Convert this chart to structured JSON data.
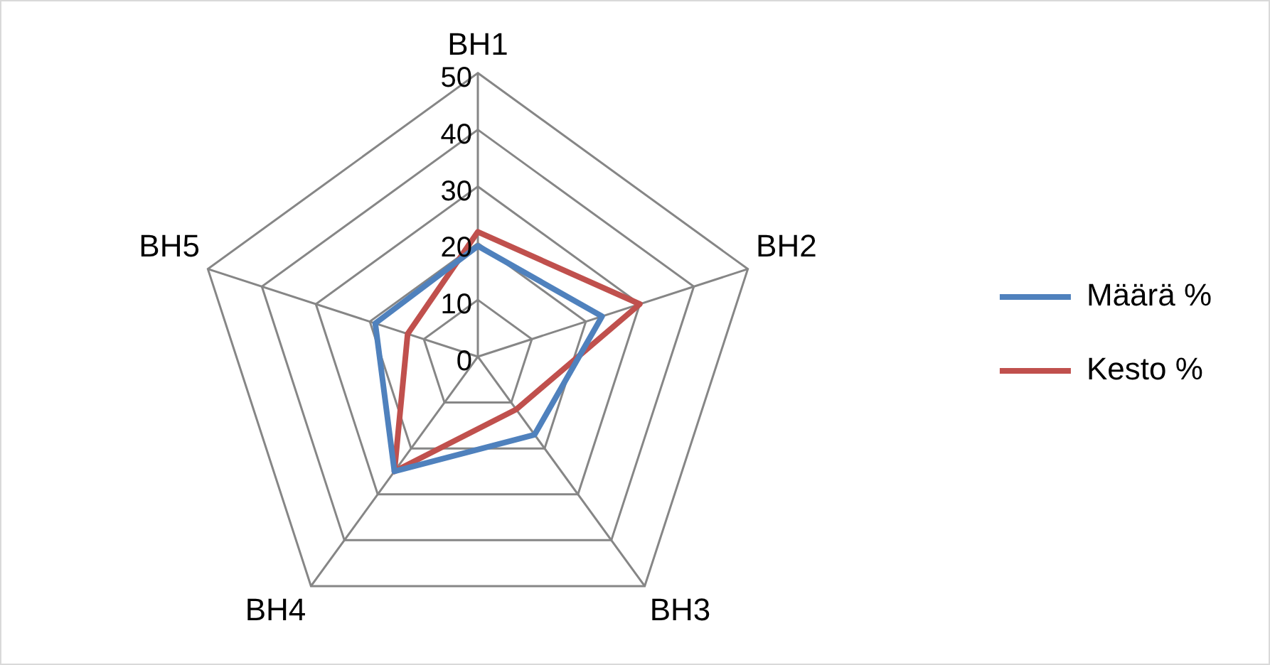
{
  "chart_data": {
    "type": "radar",
    "categories": [
      "BH1",
      "BH2",
      "BH3",
      "BH4",
      "BH5"
    ],
    "series": [
      {
        "name": "Määrä %",
        "color": "#4f81bd",
        "values": [
          19.5,
          23,
          17,
          25,
          19
        ]
      },
      {
        "name": "Kesto %",
        "color": "#c0504d",
        "values": [
          22,
          30,
          11.5,
          25,
          13
        ]
      }
    ],
    "ylim": [
      0,
      50
    ],
    "yticks": [
      0,
      10,
      20,
      30,
      40,
      50
    ],
    "grid": true,
    "legend": "right",
    "marker": "none"
  }
}
